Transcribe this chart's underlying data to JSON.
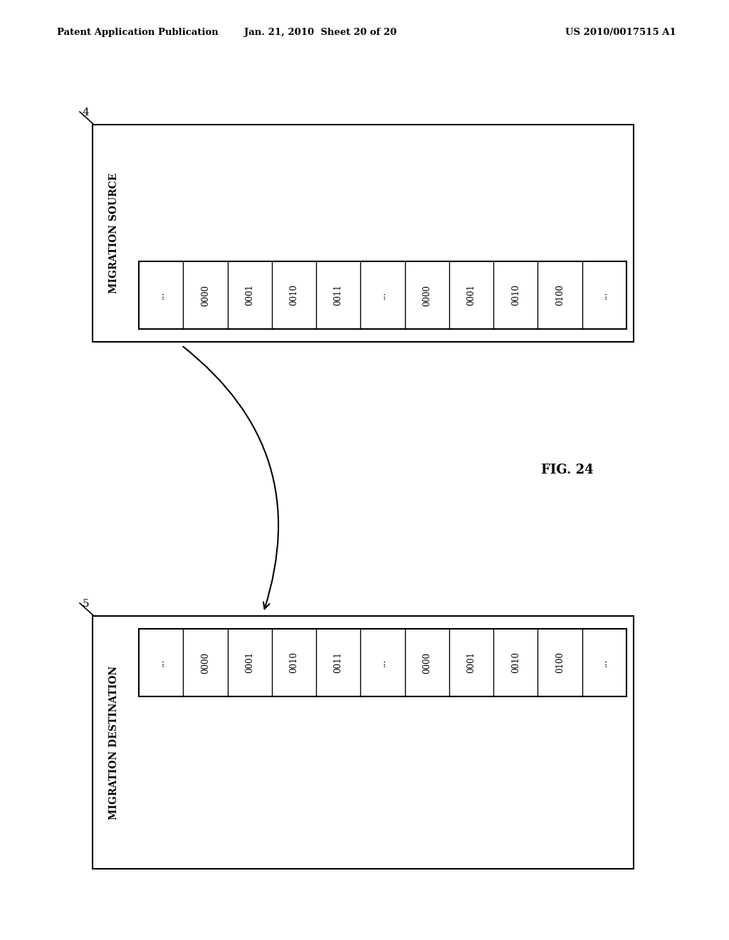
{
  "bg_color": "#ffffff",
  "header_left": "Patent Application Publication",
  "header_mid": "Jan. 21, 2010  Sheet 20 of 20",
  "header_right": "US 2010/0017515 A1",
  "fig_label": "FIG. 24",
  "source_label": "MIGRATION SOURCE",
  "source_ref": "4",
  "dest_label": "MIGRATION DESTINATION",
  "dest_ref": "5",
  "cells": [
    "...",
    "0000",
    "0001",
    "0010",
    "0011",
    "...",
    "0000",
    "0001",
    "0010",
    "0100",
    "..."
  ],
  "text_color": "#000000",
  "cell_fontsize": 8.5,
  "label_fontsize": 10,
  "header_fontsize": 9.5
}
